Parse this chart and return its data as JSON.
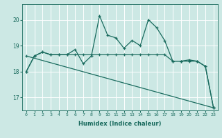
{
  "xlabel": "Humidex (Indice chaleur)",
  "background_color": "#cce8e4",
  "grid_color": "#ffffff",
  "line_color": "#1a6b5e",
  "xlim_min": -0.5,
  "xlim_max": 23.5,
  "ylim_min": 16.5,
  "ylim_max": 20.6,
  "yticks": [
    17,
    18,
    19,
    20
  ],
  "xticks": [
    0,
    1,
    2,
    3,
    4,
    5,
    6,
    7,
    8,
    9,
    10,
    11,
    12,
    13,
    14,
    15,
    16,
    17,
    18,
    19,
    20,
    21,
    22,
    23
  ],
  "series1_x": [
    0,
    1,
    2,
    3,
    4,
    5,
    6,
    7,
    8,
    9,
    10,
    11,
    12,
    13,
    14,
    15,
    16,
    17,
    18,
    19,
    20,
    21,
    22,
    23
  ],
  "series1_y": [
    18.0,
    18.6,
    18.75,
    18.65,
    18.65,
    18.65,
    18.85,
    18.3,
    18.6,
    20.15,
    19.4,
    19.3,
    18.9,
    19.2,
    19.0,
    20.0,
    19.7,
    19.2,
    18.4,
    18.4,
    18.45,
    18.4,
    18.2,
    16.6
  ],
  "series2_x": [
    0,
    1,
    2,
    3,
    4,
    5,
    6,
    7,
    8,
    9,
    10,
    11,
    12,
    13,
    14,
    15,
    16,
    17,
    18,
    19,
    20,
    21,
    22,
    23
  ],
  "series2_y": [
    18.0,
    18.6,
    18.75,
    18.65,
    18.65,
    18.65,
    18.65,
    18.65,
    18.65,
    18.65,
    18.65,
    18.65,
    18.65,
    18.65,
    18.65,
    18.65,
    18.65,
    18.65,
    18.4,
    18.4,
    18.4,
    18.4,
    18.2,
    16.6
  ],
  "series3_x": [
    0,
    23
  ],
  "series3_y": [
    18.6,
    16.6
  ]
}
